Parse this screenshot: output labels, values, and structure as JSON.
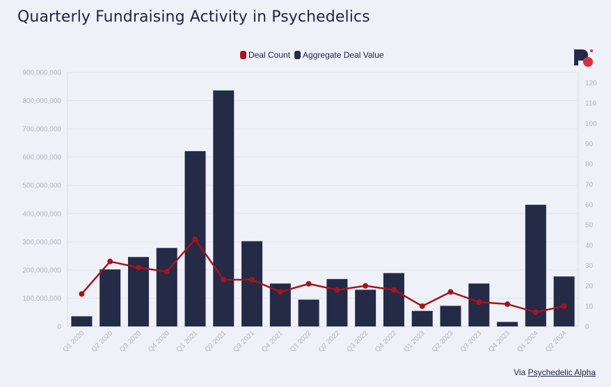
{
  "title": "Quarterly Fundraising Activity in Psychedelics",
  "footer": {
    "prefix": "Via ",
    "link_text": "Psychedelic Alpha"
  },
  "logo_icon": "psychedelic-alpha-logo-icon",
  "colors": {
    "bar": "#252a47",
    "line": "#a5141c",
    "background": "#eff1f9"
  },
  "chart_data": {
    "type": "bar",
    "title": "Quarterly Fundraising Activity in Psychedelics",
    "categories": [
      "Q1 2020",
      "Q2 2020",
      "Q3 2020",
      "Q4 2020",
      "Q1 2021",
      "Q2 2021",
      "Q3 2021",
      "Q4 2021",
      "Q1 2022",
      "Q2 2022",
      "Q3 2022",
      "Q4 2022",
      "Q1 2023",
      "Q2 2023",
      "Q3 2023",
      "Q4 2023",
      "Q1 2024",
      "Q2 2024"
    ],
    "series": [
      {
        "name": "Aggregate Deal Value",
        "type": "bar",
        "axis": "left",
        "values": [
          36000000,
          202000000,
          246000000,
          278000000,
          621000000,
          836000000,
          302000000,
          152000000,
          95000000,
          168000000,
          130000000,
          189000000,
          55000000,
          73000000,
          152000000,
          16000000,
          431000000,
          177000000
        ]
      },
      {
        "name": "Deal Count",
        "type": "line",
        "axis": "right",
        "values": [
          16,
          32,
          29,
          27,
          43,
          23,
          23,
          17,
          21,
          18,
          20,
          18,
          10,
          17,
          12,
          11,
          7,
          10
        ]
      }
    ],
    "legend": {
      "placement": "top-center",
      "items": [
        "Deal Count",
        "Aggregate Deal Value"
      ]
    },
    "y_left": {
      "ylim": [
        0,
        900000000
      ],
      "ticks": [
        "0",
        "100,000,000",
        "200,000,000",
        "300,000,000",
        "400,000,000",
        "500,000,000",
        "600,000,000",
        "700,000,000",
        "800,000,000",
        "900,000,000"
      ]
    },
    "y_right": {
      "ylim": [
        0,
        125
      ],
      "ticks": [
        "0",
        "10",
        "20",
        "30",
        "40",
        "50",
        "60",
        "70",
        "80",
        "90",
        "100",
        "110",
        "120"
      ]
    },
    "grid": true
  }
}
